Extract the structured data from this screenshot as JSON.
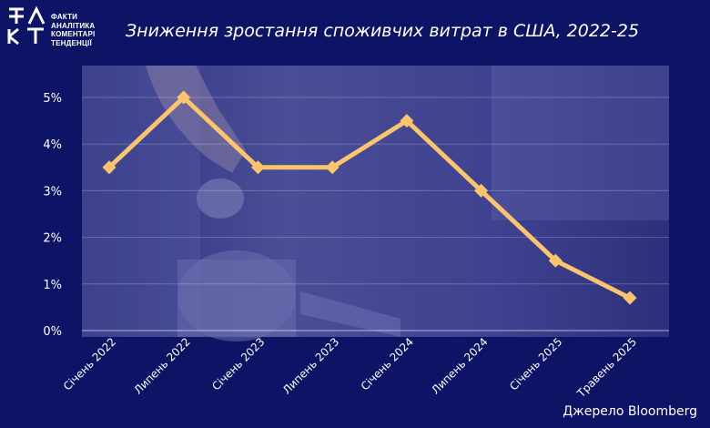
{
  "brand": {
    "logo_letters": "ФАКТ",
    "logo_lines": [
      "ФАКТИ",
      "АНАЛІТИКА",
      "КОМЕНТАРІ",
      "ТЕНДЕНЦІЇ"
    ]
  },
  "source_text": "Джерело Bloomberg",
  "colors": {
    "background": "#0d1466",
    "plot_background": "#3b3f8a",
    "line": "#fcc56b",
    "text": "#ffffff"
  },
  "chart_data": {
    "type": "line",
    "title": "Зниження зростання споживчих витрат в США, 2022-25",
    "xlabel": "",
    "ylabel": "",
    "categories": [
      "Січень 2022",
      "Липень 2022",
      "Січень 2023",
      "Липень 2023",
      "Січень 2024",
      "Липень 2024",
      "Січень 2025",
      "Травень 2025"
    ],
    "series": [
      {
        "values": [
          3.5,
          5.0,
          3.5,
          3.5,
          4.5,
          3.0,
          1.5,
          0.7
        ]
      }
    ],
    "ylim": [
      0,
      5
    ],
    "yticks": [
      "0%",
      "1%",
      "2%",
      "3%",
      "4%",
      "5%"
    ],
    "grid": true,
    "legend": "none",
    "background_photo": "hand placing coin into glass jar of coins"
  }
}
